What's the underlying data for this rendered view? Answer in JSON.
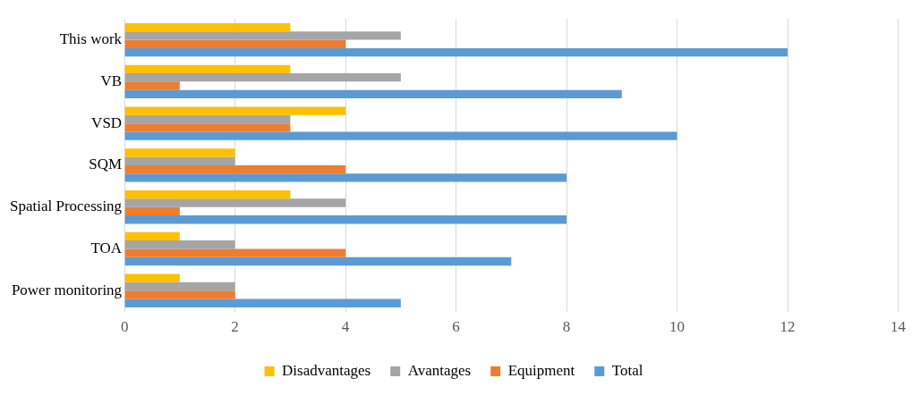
{
  "chart_data": {
    "type": "bar",
    "orientation": "horizontal",
    "categories": [
      "This work",
      "VB",
      "VSD",
      "SQM",
      "Spatial Processing",
      "TOA",
      "Power monitoring"
    ],
    "series": [
      {
        "name": "Disadvantages",
        "color": "#ffc000",
        "values": [
          3,
          3,
          4,
          2,
          3,
          1,
          1
        ]
      },
      {
        "name": "Avantages",
        "color": "#a5a5a5",
        "values": [
          5,
          5,
          3,
          2,
          4,
          2,
          2
        ]
      },
      {
        "name": "Equipment",
        "color": "#ed7d31",
        "values": [
          4,
          1,
          3,
          4,
          1,
          4,
          2
        ]
      },
      {
        "name": "Total",
        "color": "#5b9bd5",
        "values": [
          12,
          9,
          10,
          8,
          8,
          7,
          5
        ]
      }
    ],
    "xlim": [
      0,
      14
    ],
    "xticks": [
      0,
      2,
      4,
      6,
      8,
      10,
      12,
      14
    ],
    "grid": "x",
    "legend": "bottom"
  }
}
